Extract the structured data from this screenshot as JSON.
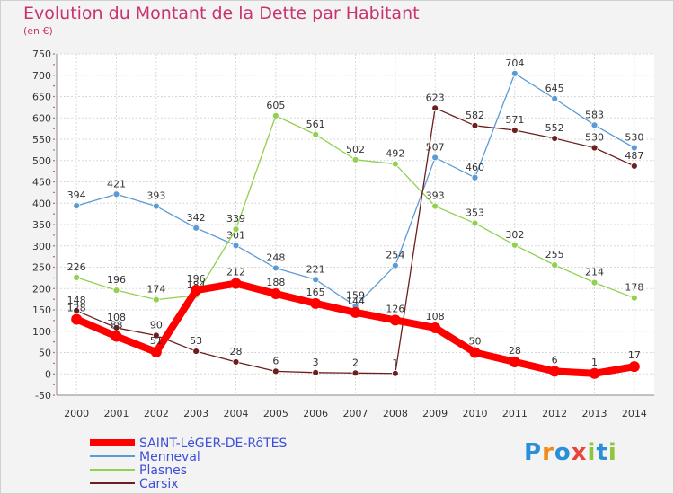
{
  "header": {
    "title": "Evolution du Montant de la Dette par Habitant",
    "subtitle": "(en €)"
  },
  "logo": {
    "text": "Proxiti",
    "letters": [
      "P",
      "r",
      "o",
      "x",
      "i",
      "t",
      "i"
    ],
    "colors": [
      "#2a8fd6",
      "#f08a1c",
      "#2a8fd6",
      "#e8453c",
      "#8cc63f",
      "#2a8fd6",
      "#8cc63f"
    ]
  },
  "chart_data": {
    "type": "line",
    "title": "Evolution du Montant de la Dette par Habitant",
    "ylabel": "(en €)",
    "x": [
      "2000",
      "2001",
      "2002",
      "2003",
      "2004",
      "2005",
      "2006",
      "2007",
      "2008",
      "2009",
      "2010",
      "2011",
      "2012",
      "2013",
      "2014"
    ],
    "ylim": [
      -50,
      750
    ],
    "yticks": [
      -50,
      0,
      50,
      100,
      150,
      200,
      250,
      300,
      350,
      400,
      450,
      500,
      550,
      600,
      650,
      700,
      750
    ],
    "grid": true,
    "legend_position": "bottom-left",
    "series": [
      {
        "name": "Menneval",
        "color": "#5b9bd5",
        "values": [
          394,
          421,
          393,
          342,
          301,
          248,
          221,
          159,
          254,
          507,
          460,
          704,
          645,
          583,
          530
        ]
      },
      {
        "name": "Plasnes",
        "color": "#92d050",
        "values": [
          226,
          196,
          174,
          184,
          339,
          605,
          561,
          502,
          492,
          393,
          353,
          302,
          255,
          214,
          178
        ]
      },
      {
        "name": "Carsix",
        "color": "#6b1f1f",
        "values": [
          148,
          108,
          90,
          53,
          28,
          6,
          3,
          2,
          1,
          623,
          582,
          571,
          552,
          530,
          487
        ]
      },
      {
        "name": "SAINT-LéGER-DE-RôTES",
        "color": "#ff0000",
        "values": [
          128,
          88,
          51,
          196,
          212,
          188,
          165,
          144,
          126,
          108,
          50,
          28,
          6,
          1,
          17
        ]
      }
    ]
  }
}
